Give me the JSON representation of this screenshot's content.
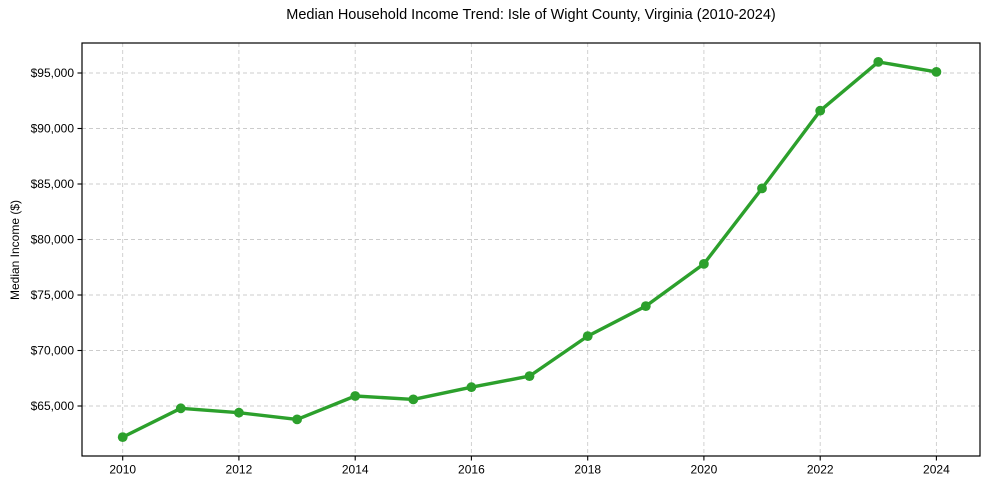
{
  "figure": {
    "title": "Median Household Income Trend: Isle of Wight County, Virginia (2010-2024)"
  },
  "chart_data": {
    "type": "line",
    "title": "Median Household Income Trend: Isle of Wight County, Virginia (2010-2024)",
    "xlabel": "",
    "ylabel": "Median Income ($)",
    "x": [
      2010,
      2011,
      2012,
      2013,
      2014,
      2015,
      2016,
      2017,
      2018,
      2019,
      2020,
      2021,
      2022,
      2023,
      2024
    ],
    "series": [
      {
        "name": "Median Household Income",
        "values": [
          62200,
          64800,
          64400,
          63800,
          65900,
          65600,
          66700,
          67700,
          71300,
          74000,
          77800,
          84600,
          91600,
          96000,
          95100
        ],
        "color": "#2ca02c",
        "marker": "circle"
      }
    ],
    "x_ticks": [
      2010,
      2012,
      2014,
      2016,
      2018,
      2020,
      2022,
      2024
    ],
    "x_tick_labels": [
      "2010",
      "2012",
      "2014",
      "2016",
      "2018",
      "2020",
      "2022",
      "2024"
    ],
    "y_ticks": [
      65000,
      70000,
      75000,
      80000,
      85000,
      90000,
      95000
    ],
    "y_tick_labels": [
      "$65,000",
      "$70,000",
      "$75,000",
      "$80,000",
      "$85,000",
      "$90,000",
      "$95,000"
    ],
    "xlim": [
      2009.3,
      2024.75
    ],
    "ylim": [
      60500,
      97700
    ],
    "grid": true,
    "grid_line_style": "dashed",
    "legend_position": "none",
    "axis_color": "#000000",
    "grid_color": "#cccccc",
    "background_color": "#ffffff"
  }
}
